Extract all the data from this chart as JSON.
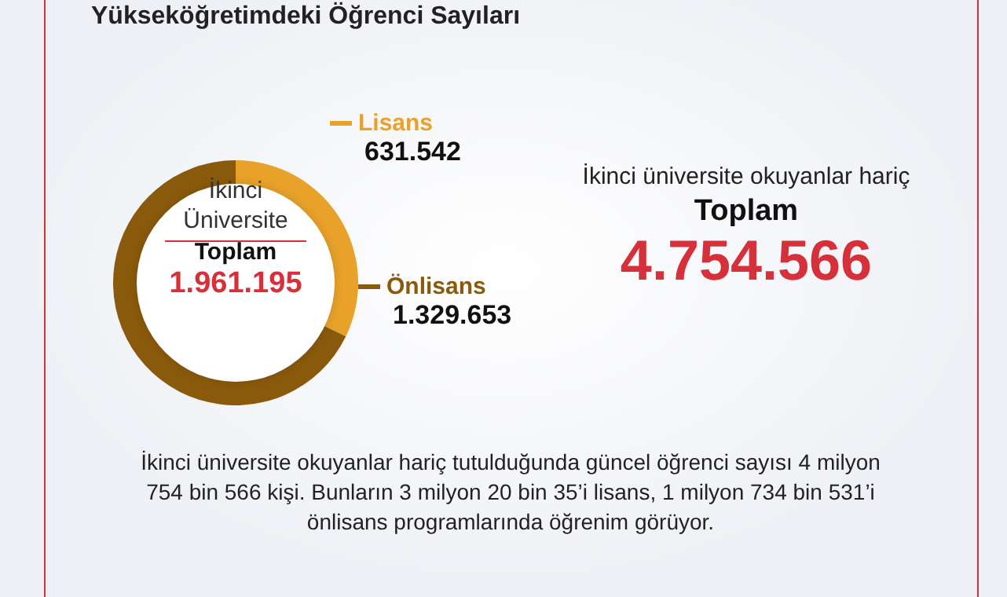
{
  "chart_data": {
    "type": "donut",
    "title": "Yükseköğretimdeki Öğrenci Sayıları",
    "categories": [
      "Lisans",
      "Önlisans"
    ],
    "values": [
      631542,
      1329653
    ],
    "colors": [
      "#e8a22a",
      "#8a5a0c"
    ],
    "value_labels": [
      "631.542",
      "1.329.653"
    ],
    "legend": "right",
    "annotations": [
      "İkinci Üniversite",
      "Toplam",
      "1.961.195",
      "İkinci üniversite okuyanlar hariç",
      "Toplam",
      "4.754.566",
      "İkinci üniversite okuyanlar hariç tutulduğunda güncel öğrenci sayısı 4 milyon 754 bin 566 kişi. Bunların 3 milyon 20 bin 35’i lisans, 1 milyon 734 bin 531’i önlisans programlarında öğrenim görüyor."
    ]
  }
}
